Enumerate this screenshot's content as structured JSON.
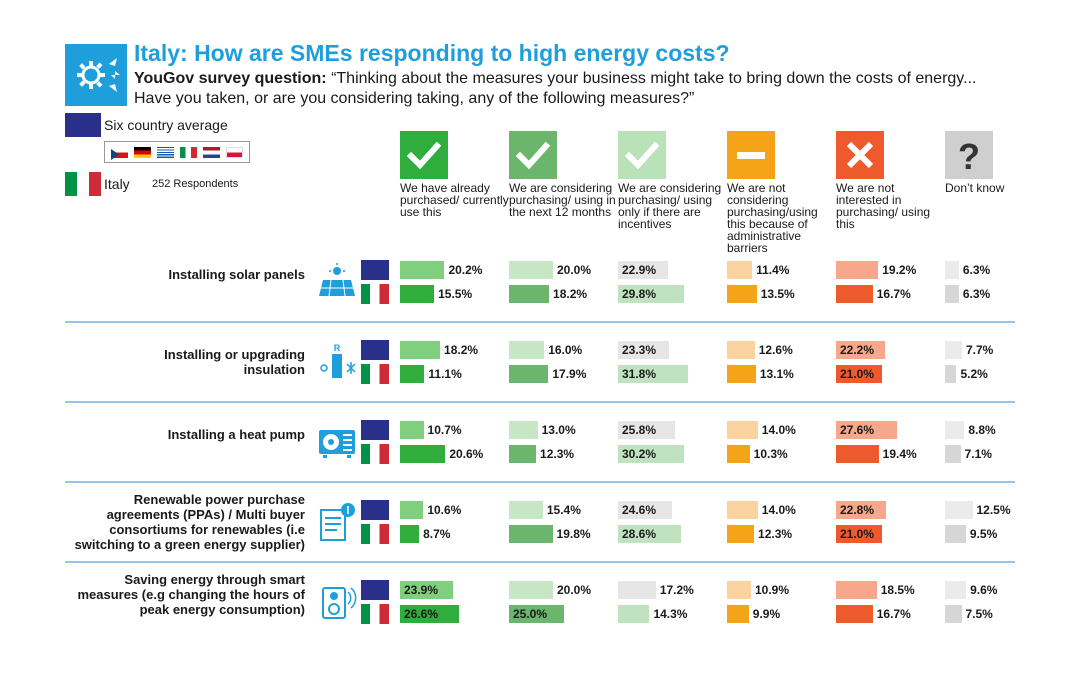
{
  "header": {
    "title": "Italy: How are SMEs responding to high energy costs?",
    "question_prefix": "YouGov survey question:",
    "question_text": " “Thinking about the measures your business might take to bring down the costs of energy... Have you taken, or are you considering taking, any of the following measures?”"
  },
  "legend": {
    "avg_label": "Six country average",
    "italy_label": "Italy",
    "respondents": "252 Respondents",
    "colors": {
      "eu": "#2a2f8a",
      "brand": "#1e9fdc"
    }
  },
  "chart_data": {
    "type": "bar",
    "columns": [
      {
        "label": "We have already purchased/ currently use this",
        "icon": "checkmark-icon",
        "avg_color": "#7fcf7f",
        "it_color": "#2fae3e",
        "icon_color": "#2fae3e"
      },
      {
        "label": "We are considering purchasing/ using in the next 12 months",
        "icon": "checkmark-icon",
        "avg_color": "#c6e6c6",
        "it_color": "#6cb56c",
        "icon_color": "#6cb56c"
      },
      {
        "label": "We are considering purchasing/ using only if there are incentives",
        "icon": "checkmark-icon",
        "avg_color": "#e6e6e6",
        "it_color": "#bfe3bf",
        "icon_color": "#b9e2b9"
      },
      {
        "label": "We are not considering purchasing/using this because of administrative barriers",
        "icon": "minus-icon",
        "avg_color": "#fbd3a0",
        "it_color": "#f5a418",
        "icon_color": "#f5a418"
      },
      {
        "label": "We are not interested in purchasing/ using this",
        "icon": "cross-icon",
        "avg_color": "#f7a78c",
        "it_color": "#ee5a2b",
        "icon_color": "#ee5a2b"
      },
      {
        "label": "Don’t know",
        "icon": "question-icon",
        "avg_color": "#ebebeb",
        "it_color": "#d6d6d6",
        "icon_color": "#cfcfcf"
      }
    ],
    "rows": [
      {
        "label": "Installing solar panels",
        "icon": "solar-panel-icon",
        "avg": [
          20.2,
          20.0,
          22.9,
          11.4,
          19.2,
          6.3
        ],
        "italy": [
          15.5,
          18.2,
          29.8,
          13.5,
          16.7,
          6.3
        ],
        "avg_text": [
          "20.2%",
          "20.0%",
          "22.9%",
          "11.4%",
          "19.2%",
          "6.3%"
        ],
        "italy_text": [
          "15.5%",
          "18.2%",
          "29.8%",
          "13.5%",
          "16.7%",
          "6.3%"
        ]
      },
      {
        "label": "Installing or upgrading insulation",
        "icon": "insulation-icon",
        "avg": [
          18.2,
          16.0,
          23.3,
          12.6,
          22.2,
          7.7
        ],
        "italy": [
          11.1,
          17.9,
          31.8,
          13.1,
          21.0,
          5.2
        ],
        "avg_text": [
          "18.2%",
          "16.0%",
          "23.3%",
          "12.6%",
          "22.2%",
          "7.7%"
        ],
        "italy_text": [
          "11.1%",
          "17.9%",
          "31.8%",
          "13.1%",
          "21.0%",
          "5.2%"
        ]
      },
      {
        "label": "Installing a heat pump",
        "icon": "heat-pump-icon",
        "avg": [
          10.7,
          13.0,
          25.8,
          14.0,
          27.6,
          8.8
        ],
        "italy": [
          20.6,
          12.3,
          30.2,
          10.3,
          19.4,
          7.1
        ],
        "avg_text": [
          "10.7%",
          "13.0%",
          "25.8%",
          "14.0%",
          "27.6%",
          "8.8%"
        ],
        "italy_text": [
          "20.6%",
          "12.3%",
          "30.2%",
          "10.3%",
          "19.4%",
          "7.1%"
        ]
      },
      {
        "label": "Renewable power purchase agreements (PPAs) / Multi buyer consortiums for renewables (i.e switching to a green energy supplier)",
        "icon": "contract-icon",
        "avg": [
          10.6,
          15.4,
          24.6,
          14.0,
          22.8,
          12.5
        ],
        "italy": [
          8.7,
          19.8,
          28.6,
          12.3,
          21.0,
          9.5
        ],
        "avg_text": [
          "10.6%",
          "15.4%",
          "24.6%",
          "14.0%",
          "22.8%",
          "12.5%"
        ],
        "italy_text": [
          "8.7%",
          "19.8%",
          "28.6%",
          "12.3%",
          "21.0%",
          "9.5%"
        ]
      },
      {
        "label": "Saving energy through smart measures (e.g changing the hours of peak energy consumption)",
        "icon": "smart-plug-icon",
        "avg": [
          23.9,
          20.0,
          17.2,
          10.9,
          18.5,
          9.6
        ],
        "italy": [
          26.6,
          25.0,
          14.3,
          9.9,
          16.7,
          7.5
        ],
        "avg_text": [
          "23.9%",
          "20.0%",
          "17.2%",
          "10.9%",
          "18.5%",
          "9.6%"
        ],
        "italy_text": [
          "26.6%",
          "25.0%",
          "14.3%",
          "9.9%",
          "16.7%",
          "7.5%"
        ]
      }
    ]
  }
}
